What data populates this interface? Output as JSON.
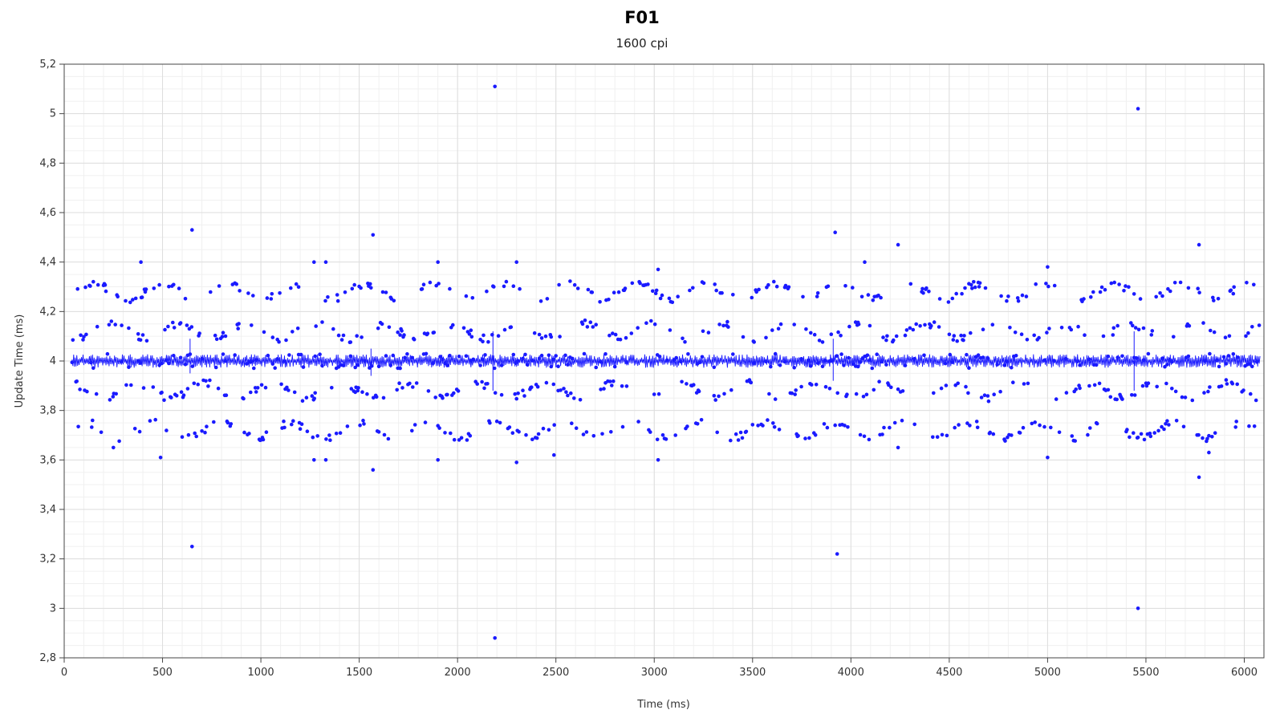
{
  "chart_data": {
    "type": "scatter",
    "title": "F01",
    "subtitle": "1600 cpi",
    "xlabel": "Time (ms)",
    "ylabel": "Update Time (ms)",
    "xlim": [
      0,
      6100
    ],
    "ylim": [
      2.8,
      5.2
    ],
    "x_ticks": [
      0,
      500,
      1000,
      1500,
      2000,
      2500,
      3000,
      3500,
      4000,
      4500,
      5000,
      5500,
      6000
    ],
    "x_tick_labels": [
      "0",
      "500",
      "1000",
      "1500",
      "2000",
      "2500",
      "3000",
      "3500",
      "4000",
      "4500",
      "5000",
      "5500",
      "6000"
    ],
    "y_ticks": [
      2.8,
      3.0,
      3.2,
      3.4,
      3.6,
      3.8,
      4.0,
      4.2,
      4.4,
      4.6,
      4.8,
      5.0,
      5.2
    ],
    "y_tick_labels": [
      "2,8",
      "3",
      "3,2",
      "3,4",
      "3,6",
      "3,8",
      "4",
      "4,2",
      "4,4",
      "4,6",
      "4,8",
      "5",
      "5,2"
    ],
    "grid": true,
    "series_color": "#1a1aff",
    "series": [
      {
        "x_start": 40,
        "x_end": 6080,
        "interval_ms": 4,
        "baseline": 4.0,
        "band_upper": [
          3.72,
          3.88,
          4.12,
          4.28
        ],
        "outliers": [
          [
            2190,
            5.11
          ],
          [
            5460,
            5.02
          ],
          [
            650,
            4.53
          ],
          [
            1570,
            4.51
          ],
          [
            3920,
            4.52
          ],
          [
            4240,
            4.47
          ],
          [
            5770,
            4.47
          ],
          [
            390,
            4.4
          ],
          [
            1900,
            4.4
          ],
          [
            2300,
            4.4
          ],
          [
            1270,
            4.4
          ],
          [
            1330,
            4.4
          ],
          [
            4070,
            4.4
          ],
          [
            5000,
            4.38
          ],
          [
            3020,
            4.37
          ],
          [
            250,
            3.65
          ],
          [
            490,
            3.61
          ],
          [
            1270,
            3.6
          ],
          [
            1330,
            3.6
          ],
          [
            1570,
            3.56
          ],
          [
            1900,
            3.6
          ],
          [
            2300,
            3.59
          ],
          [
            2490,
            3.62
          ],
          [
            3020,
            3.6
          ],
          [
            4240,
            3.65
          ],
          [
            5000,
            3.61
          ],
          [
            5770,
            3.53
          ],
          [
            5820,
            3.63
          ],
          [
            650,
            3.25
          ],
          [
            3930,
            3.22
          ],
          [
            5460,
            3.0
          ],
          [
            2190,
            2.88
          ]
        ]
      }
    ]
  }
}
